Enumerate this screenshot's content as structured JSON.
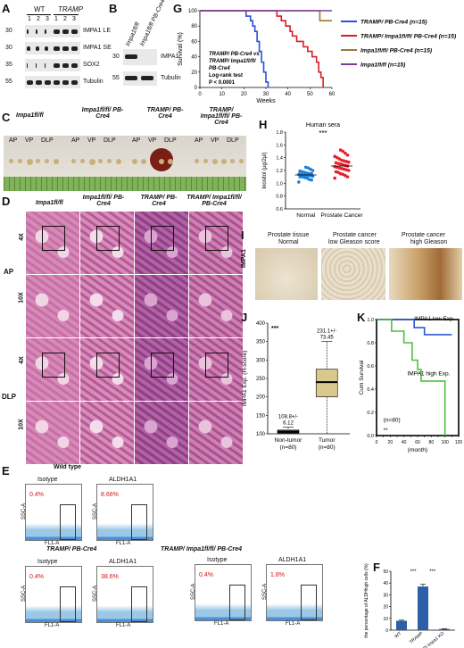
{
  "panels": {
    "A": "A",
    "B": "B",
    "C": "C",
    "D": "D",
    "E": "E",
    "F": "F",
    "G": "G",
    "H": "H",
    "I": "I",
    "J": "J",
    "K": "K"
  },
  "panelA": {
    "group_wt": "WT",
    "group_tramp": "TRAMP",
    "lanes": [
      "1",
      "2",
      "3",
      "1",
      "2",
      "3"
    ],
    "markers": [
      "30",
      "30",
      "35",
      "55"
    ],
    "rows": [
      "IMPA1 LE",
      "IMPA1 SE",
      "SOX2",
      "Tubulin"
    ]
  },
  "panelB": {
    "lanes": [
      "Impa1fl/fl",
      "Impa1fl/fl PB-Cre4"
    ],
    "markers": [
      "30",
      "55"
    ],
    "rows": [
      "IMPA1",
      "Tubulin"
    ]
  },
  "panelC": {
    "groups": [
      "Impa1fl/fl",
      "Impa1fl/fl/ PB-Cre4",
      "TRAMP/ PB-Cre4",
      "TRAMP/ Impa1fl/fl/ PB-Cre4"
    ],
    "lobes": [
      "AP",
      "VP",
      "DLP"
    ]
  },
  "panelD": {
    "columns": [
      "Impa1fl/fl",
      "Impa1fl/fl/ PB-Cre4",
      "TRAMP/ PB-Cre4",
      "TRAMP/ Impa1fl/fl/ PB-Cre4"
    ],
    "row_groups": [
      "AP",
      "DLP"
    ],
    "mags": [
      "4X",
      "10X",
      "4X",
      "10X"
    ]
  },
  "panelE": {
    "wild_type": "Wild type",
    "isotype": "Isotype",
    "aldh": "ALDH1A1",
    "tramp_pbcre4": "TRAMP/ PB-Cre4",
    "tramp_impa1": "TRAMP/ Impa1fl/fl/ PB-Cre4",
    "ssc": "SSC-A",
    "fl1": "FL1-A",
    "pcts": [
      "0.4%",
      "8.66%",
      "0.4%",
      "38.6%",
      "0.4%",
      "1.8%"
    ]
  },
  "panelF": {
    "ylabel": "the percentage of ALDHhigh cells (%)",
    "categories": [
      "WT",
      "TRAMP",
      "TRAMP/ Impa1 KO"
    ],
    "sig": [
      "***",
      "***"
    ]
  },
  "chart_data": [
    {
      "panel": "F",
      "type": "bar",
      "categories": [
        "WT",
        "TRAMP",
        "TRAMP/ Impa1 KO"
      ],
      "values": [
        8,
        37,
        1
      ],
      "errors": [
        0.5,
        2,
        0.3
      ],
      "ylabel": "the percentage of ALDHhigh cells (%)",
      "ylim": [
        0,
        50
      ],
      "yticks": [
        "0",
        "10",
        "20",
        "30",
        "40",
        "50"
      ],
      "colors": [
        "#2b5fa8",
        "#2b5fa8",
        "#2b5fa8"
      ]
    },
    {
      "panel": "G",
      "type": "line",
      "xlabel": "Weeks",
      "ylabel": "Survival (%)",
      "xlim": [
        0,
        60
      ],
      "ylim": [
        0,
        100
      ],
      "xticks": [
        "0",
        "10",
        "20",
        "30",
        "40",
        "50",
        "60"
      ],
      "yticks": [
        "0",
        "20",
        "40",
        "60",
        "80",
        "100"
      ],
      "series": [
        {
          "name": "TRAMP/ PB-Cre4 (n=15)",
          "color": "#2e4fd6",
          "points": [
            [
              0,
              100
            ],
            [
              20,
              100
            ],
            [
              21,
              93
            ],
            [
              23,
              87
            ],
            [
              24,
              80
            ],
            [
              25,
              73
            ],
            [
              26,
              60
            ],
            [
              27,
              47
            ],
            [
              28,
              33
            ],
            [
              29,
              20
            ],
            [
              30,
              7
            ],
            [
              31,
              0
            ]
          ]
        },
        {
          "name": "TRAMP/ Impa1fl/fl/ PB-Cre4 (n=15)",
          "color": "#d71f26",
          "points": [
            [
              0,
              100
            ],
            [
              34,
              100
            ],
            [
              35,
              93
            ],
            [
              37,
              87
            ],
            [
              39,
              80
            ],
            [
              41,
              73
            ],
            [
              42,
              67
            ],
            [
              44,
              60
            ],
            [
              47,
              53
            ],
            [
              49,
              47
            ],
            [
              51,
              40
            ],
            [
              53,
              33
            ],
            [
              54,
              20
            ],
            [
              55,
              13
            ],
            [
              56,
              0
            ]
          ]
        },
        {
          "name": "Impa1fl/fl/ PB-Cre4 (n=15)",
          "color": "#9c7b2a",
          "points": [
            [
              0,
              100
            ],
            [
              54,
              100
            ],
            [
              54.5,
              87
            ],
            [
              60,
              87
            ]
          ]
        },
        {
          "name": "Impa1fl/fl (n=15)",
          "color": "#7b3fa0",
          "points": [
            [
              0,
              100
            ],
            [
              60,
              100
            ]
          ]
        }
      ],
      "annotation_lines": [
        "TRAMP/ PB-Cre4 vs",
        "TRAMP/ Impa1fl/fl/",
        "PB-Cre4",
        "Log-rank test",
        "P < 0.0001"
      ]
    },
    {
      "panel": "H",
      "type": "scatter",
      "title": "Human sera",
      "ylabel": "Inositol (µg/2µl)",
      "categories": [
        "Normal",
        "Prostate Cancer"
      ],
      "ylim": [
        0.6,
        1.8
      ],
      "yticks": [
        "0.6",
        "0.8",
        "1.0",
        "1.2",
        "1.4",
        "1.6",
        "1.8"
      ],
      "sig": "***",
      "series": [
        {
          "name": "Normal",
          "color": "#1f7fd8",
          "mean": 1.13,
          "values": [
            1.02,
            1.05,
            1.06,
            1.08,
            1.09,
            1.1,
            1.1,
            1.11,
            1.12,
            1.12,
            1.13,
            1.13,
            1.14,
            1.14,
            1.15,
            1.15,
            1.16,
            1.17,
            1.18,
            1.19,
            1.2,
            1.22,
            1.24,
            1.25
          ]
        },
        {
          "name": "Prostate Cancer",
          "color": "#e4202f",
          "mean": 1.27,
          "values": [
            1.08,
            1.1,
            1.12,
            1.14,
            1.15,
            1.17,
            1.18,
            1.2,
            1.21,
            1.22,
            1.23,
            1.24,
            1.25,
            1.26,
            1.27,
            1.28,
            1.29,
            1.3,
            1.31,
            1.32,
            1.33,
            1.34,
            1.35,
            1.36,
            1.38,
            1.4,
            1.42,
            1.44,
            1.47,
            1.5,
            1.52
          ]
        }
      ]
    },
    {
      "panel": "J",
      "type": "box",
      "ylabel": "IMPA1 Exp. (H-score)",
      "categories": [
        "Non-tumor (n=80)",
        "Tumor (n=80)"
      ],
      "ylim": [
        100,
        400
      ],
      "yticks": [
        "100",
        "150",
        "200",
        "250",
        "300",
        "350",
        "400"
      ],
      "boxes": [
        {
          "min": 100,
          "q1": 102,
          "median": 105,
          "q3": 110,
          "max": 118
        },
        {
          "min": 100,
          "q1": 200,
          "median": 240,
          "q3": 275,
          "max": 350
        }
      ],
      "labels": [
        "108.8+/-6.12",
        "231.1+/-73.45"
      ],
      "sig": "***"
    },
    {
      "panel": "K",
      "type": "line",
      "xlabel": "(month)",
      "ylabel": "Cum Survival",
      "xlim": [
        0,
        120
      ],
      "ylim": [
        0,
        1.0
      ],
      "xticks": [
        "0",
        "10",
        "20",
        "30",
        "40",
        "50",
        "60",
        "70",
        "80",
        "90",
        "100",
        "110",
        "120"
      ],
      "yticks": [
        "0.0",
        "0.2",
        "0.4",
        "0.6",
        "0.8",
        "1.0"
      ],
      "series": [
        {
          "name": "IMPA1 low Exp.",
          "color": "#2f56d1",
          "points": [
            [
              0,
              1.0
            ],
            [
              55,
              1.0
            ],
            [
              55,
              0.93
            ],
            [
              70,
              0.93
            ],
            [
              70,
              0.87
            ],
            [
              110,
              0.87
            ]
          ]
        },
        {
          "name": "IMPA1 high Exp.",
          "color": "#4cc13e",
          "points": [
            [
              0,
              1.0
            ],
            [
              22,
              1.0
            ],
            [
              22,
              0.9
            ],
            [
              40,
              0.9
            ],
            [
              40,
              0.8
            ],
            [
              52,
              0.8
            ],
            [
              52,
              0.65
            ],
            [
              60,
              0.65
            ],
            [
              60,
              0.57
            ],
            [
              65,
              0.57
            ],
            [
              65,
              0.47
            ],
            [
              100,
              0.47
            ],
            [
              100,
              0.0
            ]
          ]
        }
      ],
      "annotations": [
        "(n=80)",
        "**"
      ]
    }
  ],
  "panelI": {
    "headers": [
      [
        "Prostate tissue",
        "Normal"
      ],
      [
        "Prostate cancer",
        "low Gleason score"
      ],
      [
        "Prostate cancer",
        "high Gleason"
      ]
    ],
    "row_label": "IMPA1"
  }
}
